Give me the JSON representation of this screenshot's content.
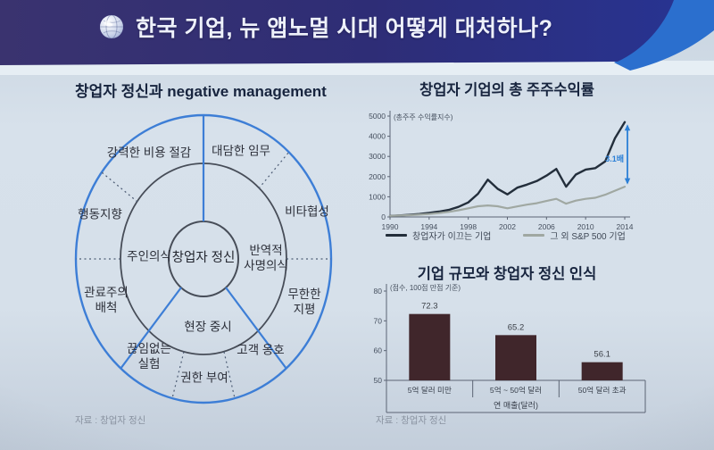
{
  "header": {
    "title": "한국 기업, 뉴 앱노멀 시대 어떻게 대처하나?",
    "icon": "globe-icon",
    "bg_color": "#2f2e77",
    "swoosh_color": "#2b6fce"
  },
  "founder_wheel": {
    "title": "창업자 정신과 negative management",
    "source": "자료 : 창업자 정신",
    "labels": {
      "cost_cutting": "강력한 비용 절감",
      "bold_mission": "대담한 임무",
      "uncompromising": "비타협성",
      "action_oriented": "행동지향",
      "owner_mindset": "주인의식",
      "center": "창업자 정신",
      "insurgent_mission": "반역적\n사명의식",
      "bureaucracy_rejection": "관료주의\n배척",
      "unlimited_horizon": "무한한\n지평",
      "field_focus": "현장 중시",
      "endless_experiment": "끊임없는\n실험",
      "customer_advocacy": "고객 옹호",
      "empowerment": "권한 부여"
    }
  },
  "chart_data": [
    {
      "id": "founder-tsr",
      "type": "line",
      "title": "창업자 기업의 총 주주수익률",
      "axis_note": "(총주주 수익률지수)",
      "x": [
        1990,
        1991,
        1992,
        1993,
        1994,
        1995,
        1996,
        1997,
        1998,
        1999,
        2000,
        2001,
        2002,
        2003,
        2004,
        2005,
        2006,
        2007,
        2008,
        2009,
        2010,
        2011,
        2012,
        2013,
        2014
      ],
      "xticks": [
        1990,
        1994,
        1998,
        2002,
        2006,
        2010,
        2014
      ],
      "ylim": [
        0,
        5000
      ],
      "yticks": [
        0,
        1000,
        2000,
        3000,
        4000,
        5000
      ],
      "grid": false,
      "legend_position": "bottom",
      "series": [
        {
          "name": "창업자가 이끄는 기업",
          "color": "#232e3b",
          "values": [
            55,
            75,
            105,
            145,
            200,
            265,
            350,
            500,
            720,
            1150,
            1850,
            1400,
            1120,
            1450,
            1600,
            1780,
            2050,
            2380,
            1500,
            2100,
            2350,
            2420,
            2750,
            3900,
            4700
          ]
        },
        {
          "name": "그 외 S&P 500 기업",
          "color": "#a0a8a2",
          "values": [
            55,
            70,
            90,
            115,
            145,
            190,
            250,
            330,
            430,
            530,
            570,
            530,
            430,
            520,
            610,
            680,
            790,
            900,
            660,
            810,
            900,
            950,
            1100,
            1300,
            1500
          ]
        }
      ],
      "annotation": {
        "label": "3.1배",
        "color": "#2b7fd6",
        "x": 2014,
        "from": 1500,
        "to": 4700
      }
    },
    {
      "id": "size-vs-founder-mentality",
      "type": "bar",
      "title": "기업 규모와 창업자 정신 인식",
      "note": "(점수, 100점 만점 기준)",
      "categories": [
        "5억 달러 미만",
        "5억 ~ 50억 달러",
        "50억 달러 초과"
      ],
      "values": [
        72.3,
        65.2,
        56.1
      ],
      "xlabel": "연 매출(달러)",
      "ylim": [
        50,
        80
      ],
      "yticks": [
        50,
        60,
        70,
        80
      ],
      "grid": false,
      "bar_color": "#40262b",
      "source": "자료 : 창업자 정신"
    }
  ]
}
